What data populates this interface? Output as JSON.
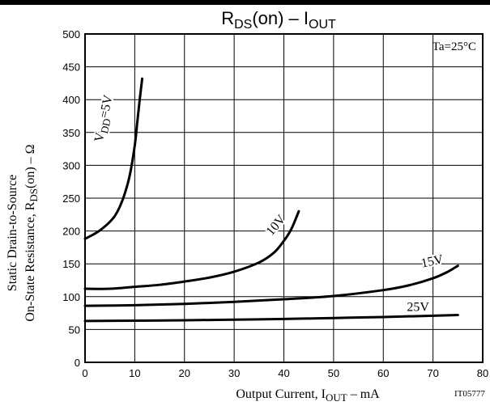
{
  "chart_data": {
    "type": "line",
    "title": {
      "main": "R",
      "main_sub": "DS",
      "mid": "(on)  –  I",
      "end_sub": "OUT"
    },
    "xlabel": {
      "pre": "Output Current, I",
      "sub": "OUT",
      "post": "  –  mA"
    },
    "ylabel": {
      "line1": "Static Drain-to-Source",
      "line2_pre": "On-State Resistance, R",
      "line2_sub": "DS",
      "line2_post": "(on)  –  Ω"
    },
    "annotation": "Ta=25°C",
    "figure_id": "IT05777",
    "xlim": [
      0,
      80
    ],
    "ylim": [
      0,
      500
    ],
    "xticks": [
      0,
      10,
      20,
      30,
      40,
      50,
      60,
      70,
      80
    ],
    "yticks": [
      0,
      50,
      100,
      150,
      200,
      250,
      300,
      350,
      400,
      450,
      500
    ],
    "grid": true,
    "series": [
      {
        "name": "VDD=5V",
        "label": {
          "pre": "V",
          "sub": "DD",
          "post": "=5V"
        },
        "points": [
          [
            0,
            188
          ],
          [
            1,
            192
          ],
          [
            2,
            196
          ],
          [
            3,
            201
          ],
          [
            4,
            207
          ],
          [
            5,
            214
          ],
          [
            6,
            223
          ],
          [
            7,
            237
          ],
          [
            8,
            257
          ],
          [
            9,
            285
          ],
          [
            10,
            330
          ],
          [
            10.5,
            365
          ],
          [
            11,
            400
          ],
          [
            11.5,
            432
          ]
        ]
      },
      {
        "name": "10V",
        "label": {
          "pre": "10V",
          "sub": "",
          "post": ""
        },
        "points": [
          [
            0,
            112
          ],
          [
            5,
            112
          ],
          [
            10,
            115
          ],
          [
            15,
            118
          ],
          [
            20,
            123
          ],
          [
            25,
            129
          ],
          [
            30,
            138
          ],
          [
            35,
            152
          ],
          [
            38,
            167
          ],
          [
            40,
            185
          ],
          [
            41.5,
            203
          ],
          [
            43,
            230
          ]
        ]
      },
      {
        "name": "15V",
        "label": {
          "pre": "15V",
          "sub": "",
          "post": ""
        },
        "points": [
          [
            0,
            86
          ],
          [
            10,
            87
          ],
          [
            20,
            89
          ],
          [
            30,
            92
          ],
          [
            40,
            96
          ],
          [
            50,
            101
          ],
          [
            60,
            110
          ],
          [
            65,
            117
          ],
          [
            70,
            128
          ],
          [
            73,
            138
          ],
          [
            75,
            147
          ]
        ]
      },
      {
        "name": "25V",
        "label": {
          "pre": "25V",
          "sub": "",
          "post": ""
        },
        "points": [
          [
            0,
            63
          ],
          [
            10,
            63.5
          ],
          [
            20,
            64
          ],
          [
            30,
            65
          ],
          [
            40,
            66
          ],
          [
            50,
            67.5
          ],
          [
            60,
            69
          ],
          [
            70,
            71
          ],
          [
            75,
            72
          ]
        ]
      }
    ],
    "colors": {
      "line": "#000000",
      "grid": "#000000",
      "background": "#ffffff"
    }
  }
}
